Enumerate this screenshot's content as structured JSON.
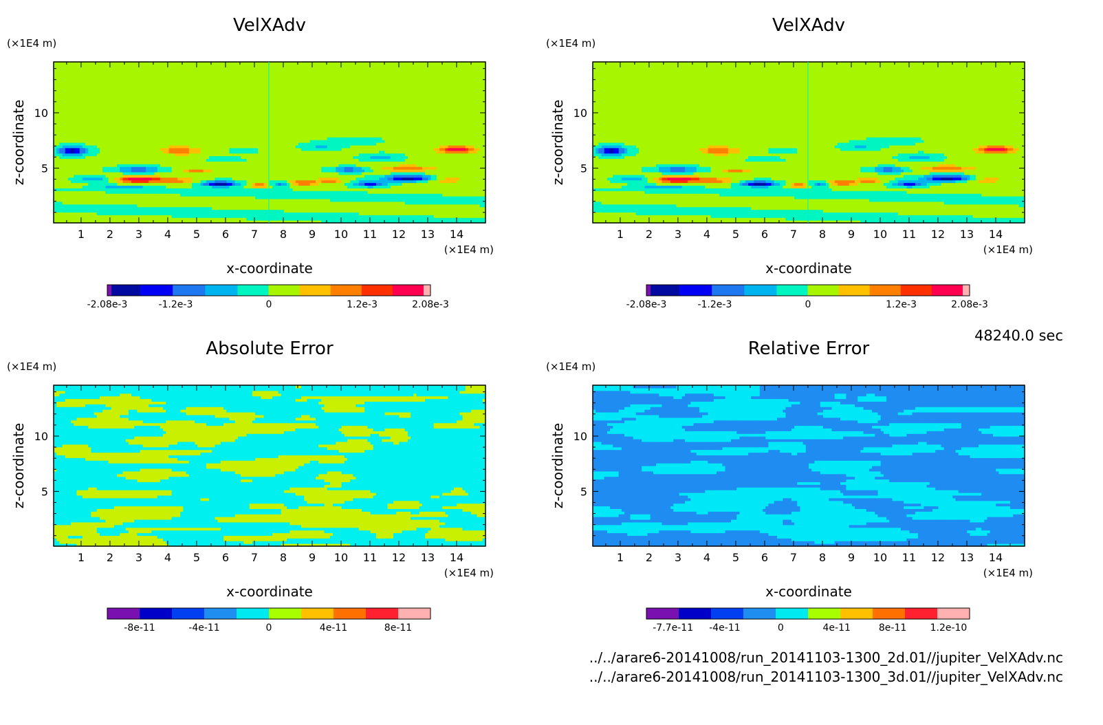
{
  "time_label": "48240.0 sec",
  "footer": {
    "file1": "../../arare6-20141008/run_20141103-1300_2d.01//jupiter_VelXAdv.nc",
    "file2": "../../arare6-20141008/run_20141103-1300_3d.01//jupiter_VelXAdv.nc"
  },
  "chart_data": [
    {
      "type": "heatmap",
      "title": "VelXAdv",
      "xlabel": "x-coordinate",
      "ylabel": "z-coordinate",
      "x_unit": "(×1E4 m)",
      "y_unit": "(×1E4 m)",
      "xlim": [
        0.05,
        15.0
      ],
      "ylim": [
        0.05,
        14.6
      ],
      "x_ticks": [
        "1",
        "2",
        "3",
        "4",
        "5",
        "6",
        "7",
        "8",
        "9",
        "10",
        "11",
        "12",
        "13",
        "14"
      ],
      "y_ticks": [
        "5",
        "10"
      ],
      "field": "velxadv",
      "colorbar_ticks": [
        "-2.08e-3",
        "-1.2e-3",
        "0",
        "1.2e-3",
        "2.08e-3"
      ],
      "colorbar_tick_values": [
        -0.00208,
        -0.0012,
        0,
        0.0012,
        0.00208
      ],
      "colorbar_range": [
        -0.00208,
        0.00208
      ]
    },
    {
      "type": "heatmap",
      "title": "VelXAdv",
      "xlabel": "x-coordinate",
      "ylabel": "z-coordinate",
      "x_unit": "(×1E4 m)",
      "y_unit": "(×1E4 m)",
      "xlim": [
        0.05,
        15.0
      ],
      "ylim": [
        0.05,
        14.6
      ],
      "x_ticks": [
        "1",
        "2",
        "3",
        "4",
        "5",
        "6",
        "7",
        "8",
        "9",
        "10",
        "11",
        "12",
        "13",
        "14"
      ],
      "y_ticks": [
        "5",
        "10"
      ],
      "field": "velxadv",
      "colorbar_ticks": [
        "-2.08e-3",
        "-1.2e-3",
        "0",
        "1.2e-3",
        "2.08e-3"
      ],
      "colorbar_tick_values": [
        -0.00208,
        -0.0012,
        0,
        0.0012,
        0.00208
      ],
      "colorbar_range": [
        -0.00208,
        0.00208
      ]
    },
    {
      "type": "heatmap",
      "title": "Absolute Error",
      "xlabel": "x-coordinate",
      "ylabel": "z-coordinate",
      "x_unit": "(×1E4 m)",
      "y_unit": "(×1E4 m)",
      "xlim": [
        0.05,
        15.0
      ],
      "ylim": [
        0.05,
        14.6
      ],
      "x_ticks": [
        "1",
        "2",
        "3",
        "4",
        "5",
        "6",
        "7",
        "8",
        "9",
        "10",
        "11",
        "12",
        "13",
        "14"
      ],
      "y_ticks": [
        "5",
        "10"
      ],
      "field": "abs_error",
      "colorbar_ticks": [
        "-8e-11",
        "-4e-11",
        "0",
        "4e-11",
        "8e-11"
      ],
      "colorbar_tick_values": [
        -8e-11,
        -4e-11,
        0,
        4e-11,
        8e-11
      ],
      "colorbar_range": [
        -1e-10,
        1e-10
      ]
    },
    {
      "type": "heatmap",
      "title": "Relative Error",
      "xlabel": "x-coordinate",
      "ylabel": "z-coordinate",
      "x_unit": "(×1E4 m)",
      "y_unit": "(×1E4 m)",
      "xlim": [
        0.05,
        15.0
      ],
      "ylim": [
        0.05,
        14.6
      ],
      "x_ticks": [
        "1",
        "2",
        "3",
        "4",
        "5",
        "6",
        "7",
        "8",
        "9",
        "10",
        "11",
        "12",
        "13",
        "14"
      ],
      "y_ticks": [
        "5",
        "10"
      ],
      "field": "rel_error",
      "colorbar_ticks": [
        "-7.7e-11",
        "-4e-11",
        "0",
        "4e-11",
        "8e-11",
        "1.2e-10"
      ],
      "colorbar_tick_values": [
        -7.7e-11,
        -4e-11,
        0,
        4e-11,
        8e-11,
        1.2e-10
      ],
      "colorbar_range": [
        -9.6e-11,
        1.35e-10
      ]
    }
  ],
  "palette": [
    "#7a10b0",
    "#0000c8",
    "#0040f0",
    "#1e8ff0",
    "#00e8f0",
    "#a8ff00",
    "#ffc000",
    "#ff7000",
    "#ff2030",
    "#ffb0b0"
  ],
  "palette_main": [
    "#7a10b0",
    "#000aa0",
    "#0000f5",
    "#1e78f0",
    "#00b4f0",
    "#00f5c0",
    "#a8f500",
    "#ffc000",
    "#ff8000",
    "#ff3000",
    "#ff0050",
    "#ffb0b0"
  ],
  "panels": [
    {
      "title_key": 0
    },
    {
      "title_key": 1
    },
    {
      "title_key": 2
    },
    {
      "title_key": 3
    }
  ]
}
